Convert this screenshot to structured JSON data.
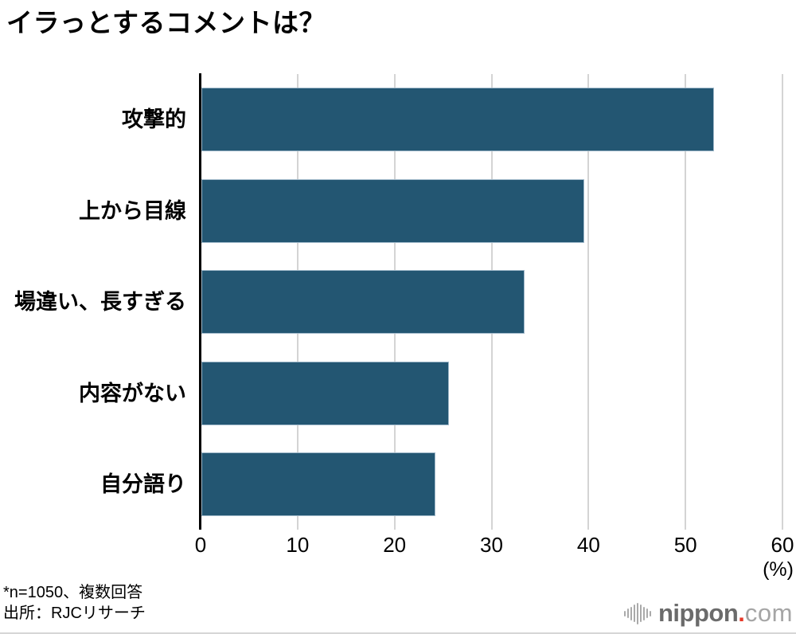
{
  "title": "イラっとするコメントは？",
  "chart_data": {
    "type": "bar",
    "orientation": "horizontal",
    "title": "イラっとするコメントは？",
    "categories": [
      "攻撃的",
      "上から目線",
      "場違い、長すぎる",
      "内容がない",
      "自分語り"
    ],
    "values": [
      52.9,
      39.5,
      33.3,
      25.5,
      24.1
    ],
    "xlabel": "(%)",
    "xlim": [
      0,
      60
    ],
    "xticks": [
      0,
      10,
      20,
      30,
      40,
      50,
      60
    ],
    "grid": true,
    "legend": false,
    "bar_color": "#235672",
    "grid_color": "#d4d4d4",
    "axis_color": "#000000"
  },
  "footnote": {
    "line1": "*n=1050、複数回答",
    "line2": "出所：RJCリサーチ"
  },
  "logo": {
    "icon": "soundwave-bars-icon",
    "name": "nippon",
    "dot": ".",
    "tld": "com",
    "icon_color": "#aaaaaa",
    "name_color": "#6b6b6b",
    "dot_color": "#e73828",
    "tld_color": "#a5a5a5"
  }
}
